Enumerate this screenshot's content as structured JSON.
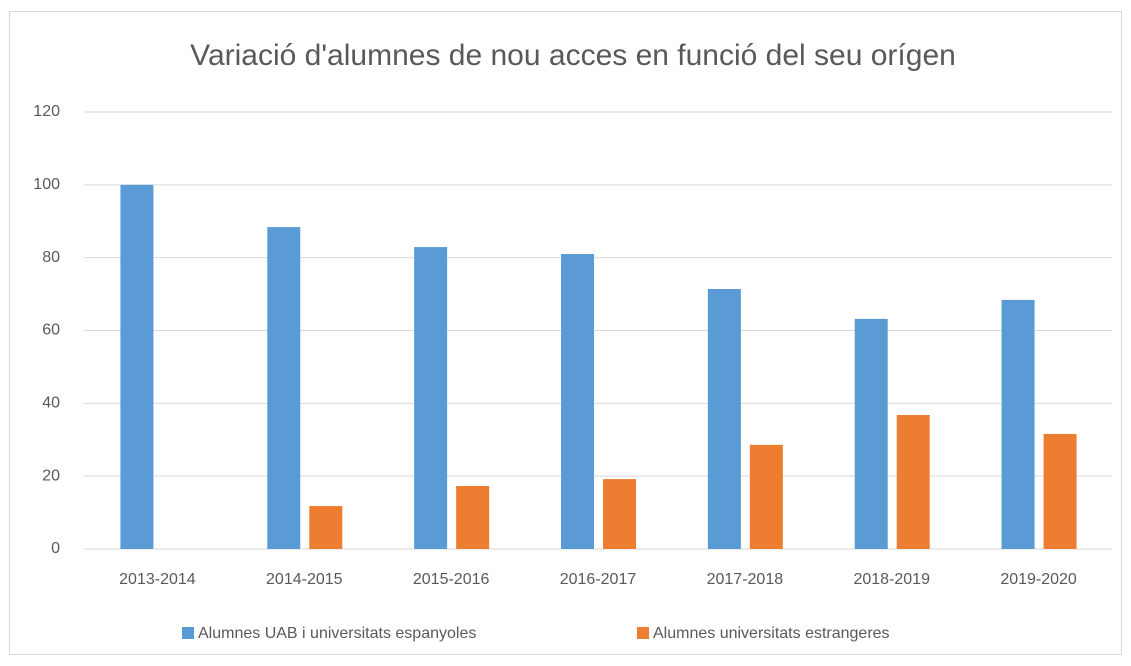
{
  "chart_data": {
    "type": "bar",
    "title": "Variació d'alumnes de nou acces en funció del seu orígen",
    "categories": [
      "2013-2014",
      "2014-2015",
      "2015-2016",
      "2016-2017",
      "2017-2018",
      "2018-2019",
      "2019-2020"
    ],
    "series": [
      {
        "name": "Alumnes UAB i universitats espanyoles",
        "color": "#5b9bd5",
        "values": [
          100,
          88.4,
          82.9,
          81.0,
          71.4,
          63.2,
          68.4
        ]
      },
      {
        "name": "Alumnes universitats estrangeres",
        "color": "#ed7d31",
        "values": [
          0,
          11.8,
          17.3,
          19.2,
          28.6,
          36.8,
          31.6
        ]
      }
    ],
    "ylim": [
      0,
      120
    ],
    "yticks": [
      0,
      20,
      40,
      60,
      80,
      100,
      120
    ],
    "grid": true,
    "legend": "bottom"
  }
}
